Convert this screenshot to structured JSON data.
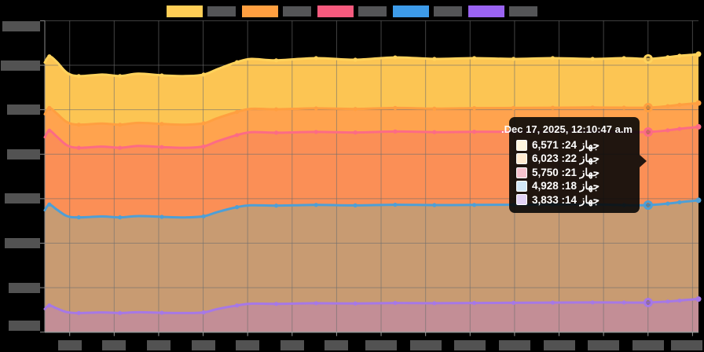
{
  "tooltip": {
    "title": "Dec 17, 2025, 12:10:47 a.m.",
    "rows": [
      {
        "series": "جهاز 24",
        "value": "6,571",
        "display": "جهاز 24: 6,571",
        "box_bg": "#FFF6DF"
      },
      {
        "series": "جهاز 22",
        "value": "6,023",
        "display": "جهاز 22: 6,023",
        "box_bg": "#FFEAD0"
      },
      {
        "series": "جهاز 21",
        "value": "5,750",
        "display": "جهاز 21: 5,750",
        "box_bg": "#F7C3CE"
      },
      {
        "series": "جهاز 18",
        "value": "4,928",
        "display": "جهاز 18: 4,928",
        "box_bg": "#D3E7F7"
      },
      {
        "series": "جهاز 14",
        "value": "3,833",
        "display": "جهاز 14: 3,833",
        "box_bg": "#E2D3F6"
      }
    ]
  },
  "legend": {
    "items": [
      {
        "color": "#FFCE56",
        "label_redacted": true
      },
      {
        "color": "#FF9F40",
        "label_redacted": true
      },
      {
        "color": "#F65A7E",
        "label_redacted": true
      },
      {
        "color": "#3D9BE9",
        "label_redacted": true
      },
      {
        "color": "#9A63F2",
        "label_redacted": true
      }
    ]
  },
  "chart_data": {
    "type": "area",
    "title": "",
    "legend_position": "top",
    "grid": true,
    "x_ticks": {
      "count": 15,
      "labels": "redacted"
    },
    "y_ticks": {
      "count": 8,
      "labels": "redacted"
    },
    "y_scale": {
      "value_at_top_gridline": 7000,
      "value_per_gridline_step": 500
    },
    "hover_index": 24,
    "hover_label": "Dec 17, 2025, 12:10:47 a.m.",
    "x_t": [
      0,
      0.007,
      0.018,
      0.034,
      0.052,
      0.088,
      0.115,
      0.143,
      0.179,
      0.215,
      0.243,
      0.264,
      0.294,
      0.316,
      0.354,
      0.415,
      0.475,
      0.536,
      0.596,
      0.657,
      0.717,
      0.777,
      0.838,
      0.886,
      0.923,
      0.953,
      0.971,
      0.991,
      1
    ],
    "marker_indices": [
      1,
      4,
      6,
      8,
      10,
      12,
      14,
      15,
      16,
      17,
      18,
      19,
      20,
      21,
      22,
      23,
      25,
      26
    ],
    "series": [
      {
        "name": "جهاز 24",
        "line_color": "#FFD25C",
        "fill_color": "#FCC553",
        "values": [
          6530,
          6600,
          6540,
          6415,
          6378,
          6395,
          6378,
          6405,
          6386,
          6378,
          6395,
          6455,
          6535,
          6571,
          6555,
          6580,
          6562,
          6588,
          6571,
          6580,
          6571,
          6580,
          6571,
          6580,
          6571,
          6590,
          6606,
          6618,
          6625
        ]
      },
      {
        "name": "جهاز 22",
        "line_color": "#FF9F40",
        "fill_color": "#FFA34E",
        "values": [
          5950,
          6020,
          5960,
          5860,
          5832,
          5845,
          5832,
          5852,
          5840,
          5832,
          5848,
          5905,
          5975,
          6010,
          6005,
          6015,
          6008,
          6020,
          6012,
          6018,
          6020,
          6022,
          6025,
          6023,
          6023,
          6040,
          6055,
          6068,
          6075
        ]
      },
      {
        "name": "جهاز 21",
        "line_color": "#FC6B85",
        "fill_color": "#FB8F56",
        "values": [
          5690,
          5765,
          5700,
          5600,
          5572,
          5585,
          5572,
          5592,
          5580,
          5572,
          5588,
          5645,
          5715,
          5748,
          5742,
          5750,
          5744,
          5755,
          5748,
          5752,
          5752,
          5755,
          5758,
          5750,
          5750,
          5768,
          5785,
          5800,
          5808
        ]
      },
      {
        "name": "جهاز 18",
        "line_color": "#4E9FD6",
        "fill_color": "#C89B72",
        "values": [
          4870,
          4935,
          4880,
          4805,
          4790,
          4800,
          4790,
          4805,
          4796,
          4790,
          4802,
          4850,
          4905,
          4926,
          4922,
          4930,
          4925,
          4932,
          4928,
          4930,
          4932,
          4934,
          4936,
          4928,
          4928,
          4945,
          4960,
          4975,
          4982
        ]
      },
      {
        "name": "جهاز 14",
        "line_color": "#A678E6",
        "fill_color": "#C38E96",
        "values": [
          3760,
          3800,
          3768,
          3725,
          3715,
          3722,
          3715,
          3724,
          3718,
          3715,
          3722,
          3760,
          3800,
          3820,
          3818,
          3825,
          3822,
          3828,
          3825,
          3828,
          3830,
          3832,
          3834,
          3833,
          3833,
          3845,
          3855,
          3868,
          3872
        ]
      }
    ]
  }
}
